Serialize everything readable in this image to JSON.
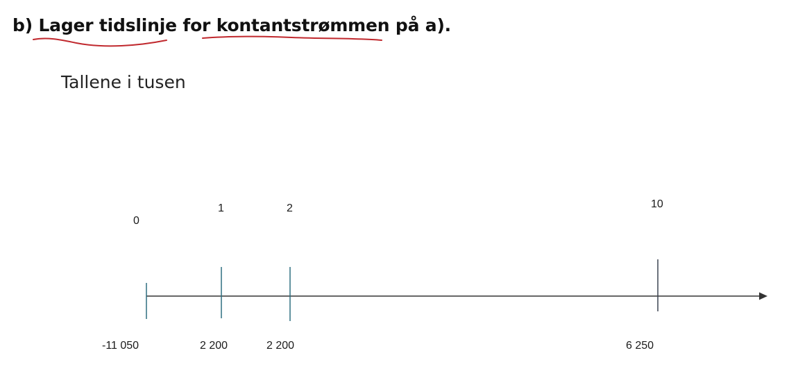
{
  "heading": {
    "part_label": "b)",
    "text_1": "Lager tidslinje",
    "text_2": "for",
    "text_3": "kontantstrømmen på",
    "text_4": "a)."
  },
  "subtitle": "Tallene i tusen",
  "timeline": {
    "axis_min": 0,
    "axis_max": 10,
    "points": [
      {
        "period": 0,
        "period_label": "0",
        "amount": -11050,
        "amount_label": "-11 050"
      },
      {
        "period": 1,
        "period_label": "1",
        "amount": 2200,
        "amount_label": "2 200"
      },
      {
        "period": 2,
        "period_label": "2",
        "amount": 2200,
        "amount_label": "2 200"
      },
      {
        "period": 10,
        "period_label": "10",
        "amount": 6250,
        "amount_label": "6 250"
      }
    ]
  },
  "colors": {
    "text": "#111111",
    "axis": "#333333",
    "tick_teal": "#2e6f80",
    "tick_dark": "#3a4250",
    "underline": "#c0282d"
  }
}
